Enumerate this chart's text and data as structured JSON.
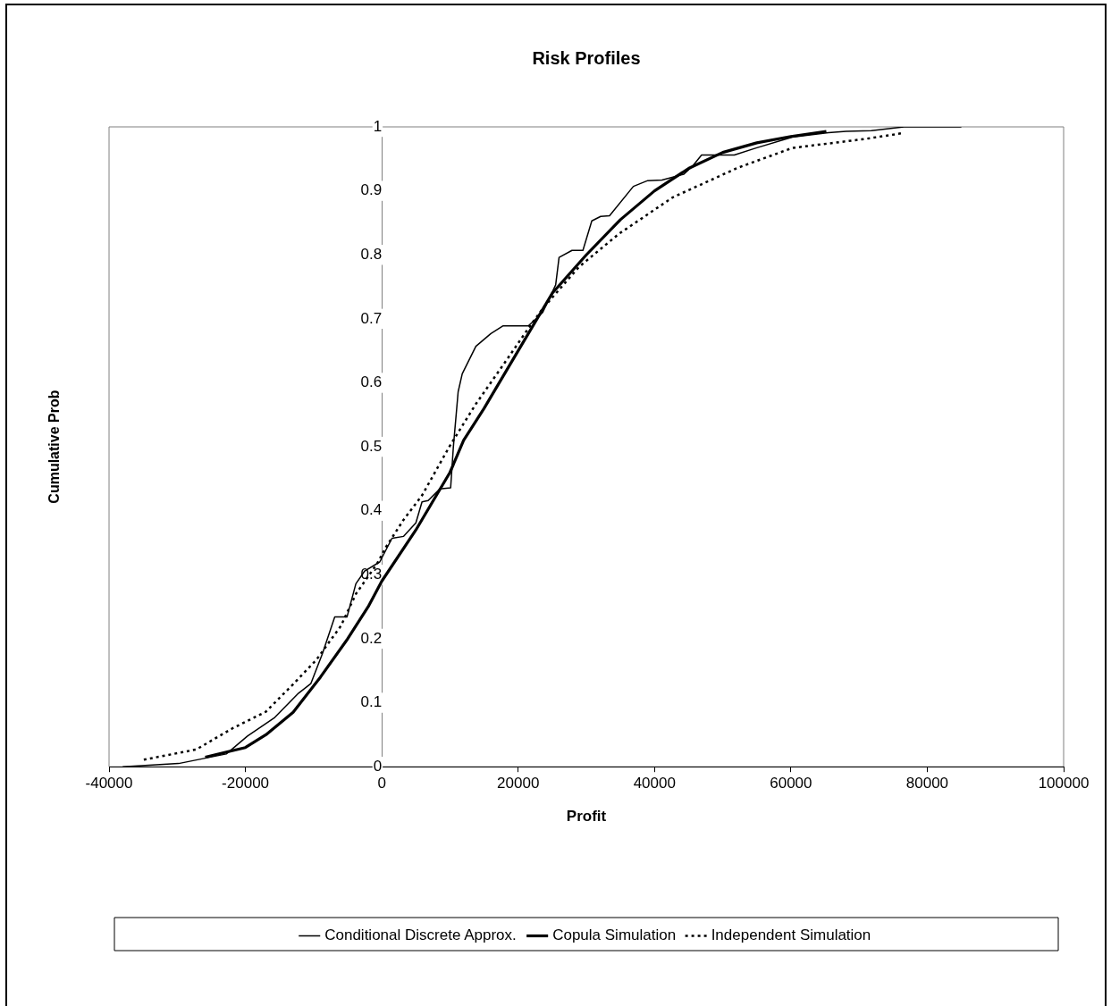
{
  "chart_data": {
    "type": "line",
    "title": "Risk Profiles",
    "xlabel": "Profit",
    "ylabel": "Cumulative Prob",
    "xlim": [
      -40000,
      100000
    ],
    "xticks": [
      -40000,
      -20000,
      0,
      20000,
      40000,
      60000,
      80000,
      100000
    ],
    "ylim": [
      0,
      1
    ],
    "yticks": [
      0,
      0.1,
      0.2,
      0.3,
      0.4,
      0.5,
      0.6,
      0.7,
      0.8,
      0.9,
      1
    ],
    "grid": false,
    "legend": "bottom",
    "marker": "none",
    "series": [
      {
        "name": "Conditional Discrete Approx.",
        "color": "#000000",
        "line_style": "solid",
        "x": [
          -38000,
          -29800,
          -22800,
          -19700,
          -15700,
          -12200,
          -10400,
          -8700,
          -6900,
          -5100,
          -3800,
          -2500,
          -300,
          1500,
          3200,
          5000,
          5900,
          6800,
          8500,
          10100,
          10500,
          11200,
          11800,
          13800,
          16000,
          17800,
          21500,
          23600,
          25500,
          26000,
          27900,
          29500,
          30800,
          32100,
          33400,
          36900,
          39000,
          41100,
          44300,
          45600,
          46900,
          49000,
          51700,
          54900,
          60200,
          65500,
          68100,
          71800,
          76600,
          85000
        ],
        "values": [
          0,
          0.005,
          0.02,
          0.048,
          0.077,
          0.115,
          0.13,
          0.177,
          0.234,
          0.234,
          0.286,
          0.306,
          0.32,
          0.357,
          0.36,
          0.381,
          0.414,
          0.416,
          0.434,
          0.436,
          0.5,
          0.586,
          0.614,
          0.657,
          0.677,
          0.689,
          0.689,
          0.71,
          0.753,
          0.796,
          0.807,
          0.807,
          0.853,
          0.86,
          0.861,
          0.907,
          0.916,
          0.917,
          0.926,
          0.939,
          0.956,
          0.956,
          0.956,
          0.967,
          0.984,
          0.991,
          0.993,
          0.994,
          1,
          1
        ]
      },
      {
        "name": "Copula Simulation",
        "color": "#000000",
        "line_style": "solid",
        "x": [
          -25900,
          -20000,
          -17000,
          -13000,
          -9000,
          -5000,
          -2000,
          0,
          5000,
          10000,
          12000,
          15000,
          20000,
          25000,
          30000,
          35000,
          40000,
          45000,
          50000,
          55000,
          60000,
          65200
        ],
        "values": [
          0.015,
          0.03,
          0.05,
          0.085,
          0.14,
          0.2,
          0.25,
          0.29,
          0.37,
          0.46,
          0.51,
          0.56,
          0.65,
          0.74,
          0.8,
          0.855,
          0.9,
          0.935,
          0.96,
          0.975,
          0.985,
          0.993
        ]
      },
      {
        "name": "Independent Simulation",
        "color": "#000000",
        "line_style": "dotted",
        "x": [
          -34900,
          -27200,
          -21900,
          -17000,
          -13000,
          -9600,
          -6000,
          -3800,
          -700,
          600,
          3200,
          5900,
          9900,
          13800,
          18200,
          21100,
          23600,
          28900,
          34800,
          42700,
          52200,
          60200,
          70800,
          76300
        ],
        "values": [
          0.011,
          0.027,
          0.06,
          0.086,
          0.129,
          0.167,
          0.22,
          0.27,
          0.317,
          0.343,
          0.386,
          0.424,
          0.5,
          0.567,
          0.634,
          0.679,
          0.716,
          0.781,
          0.833,
          0.89,
          0.936,
          0.967,
          0.981,
          0.99
        ]
      }
    ]
  }
}
